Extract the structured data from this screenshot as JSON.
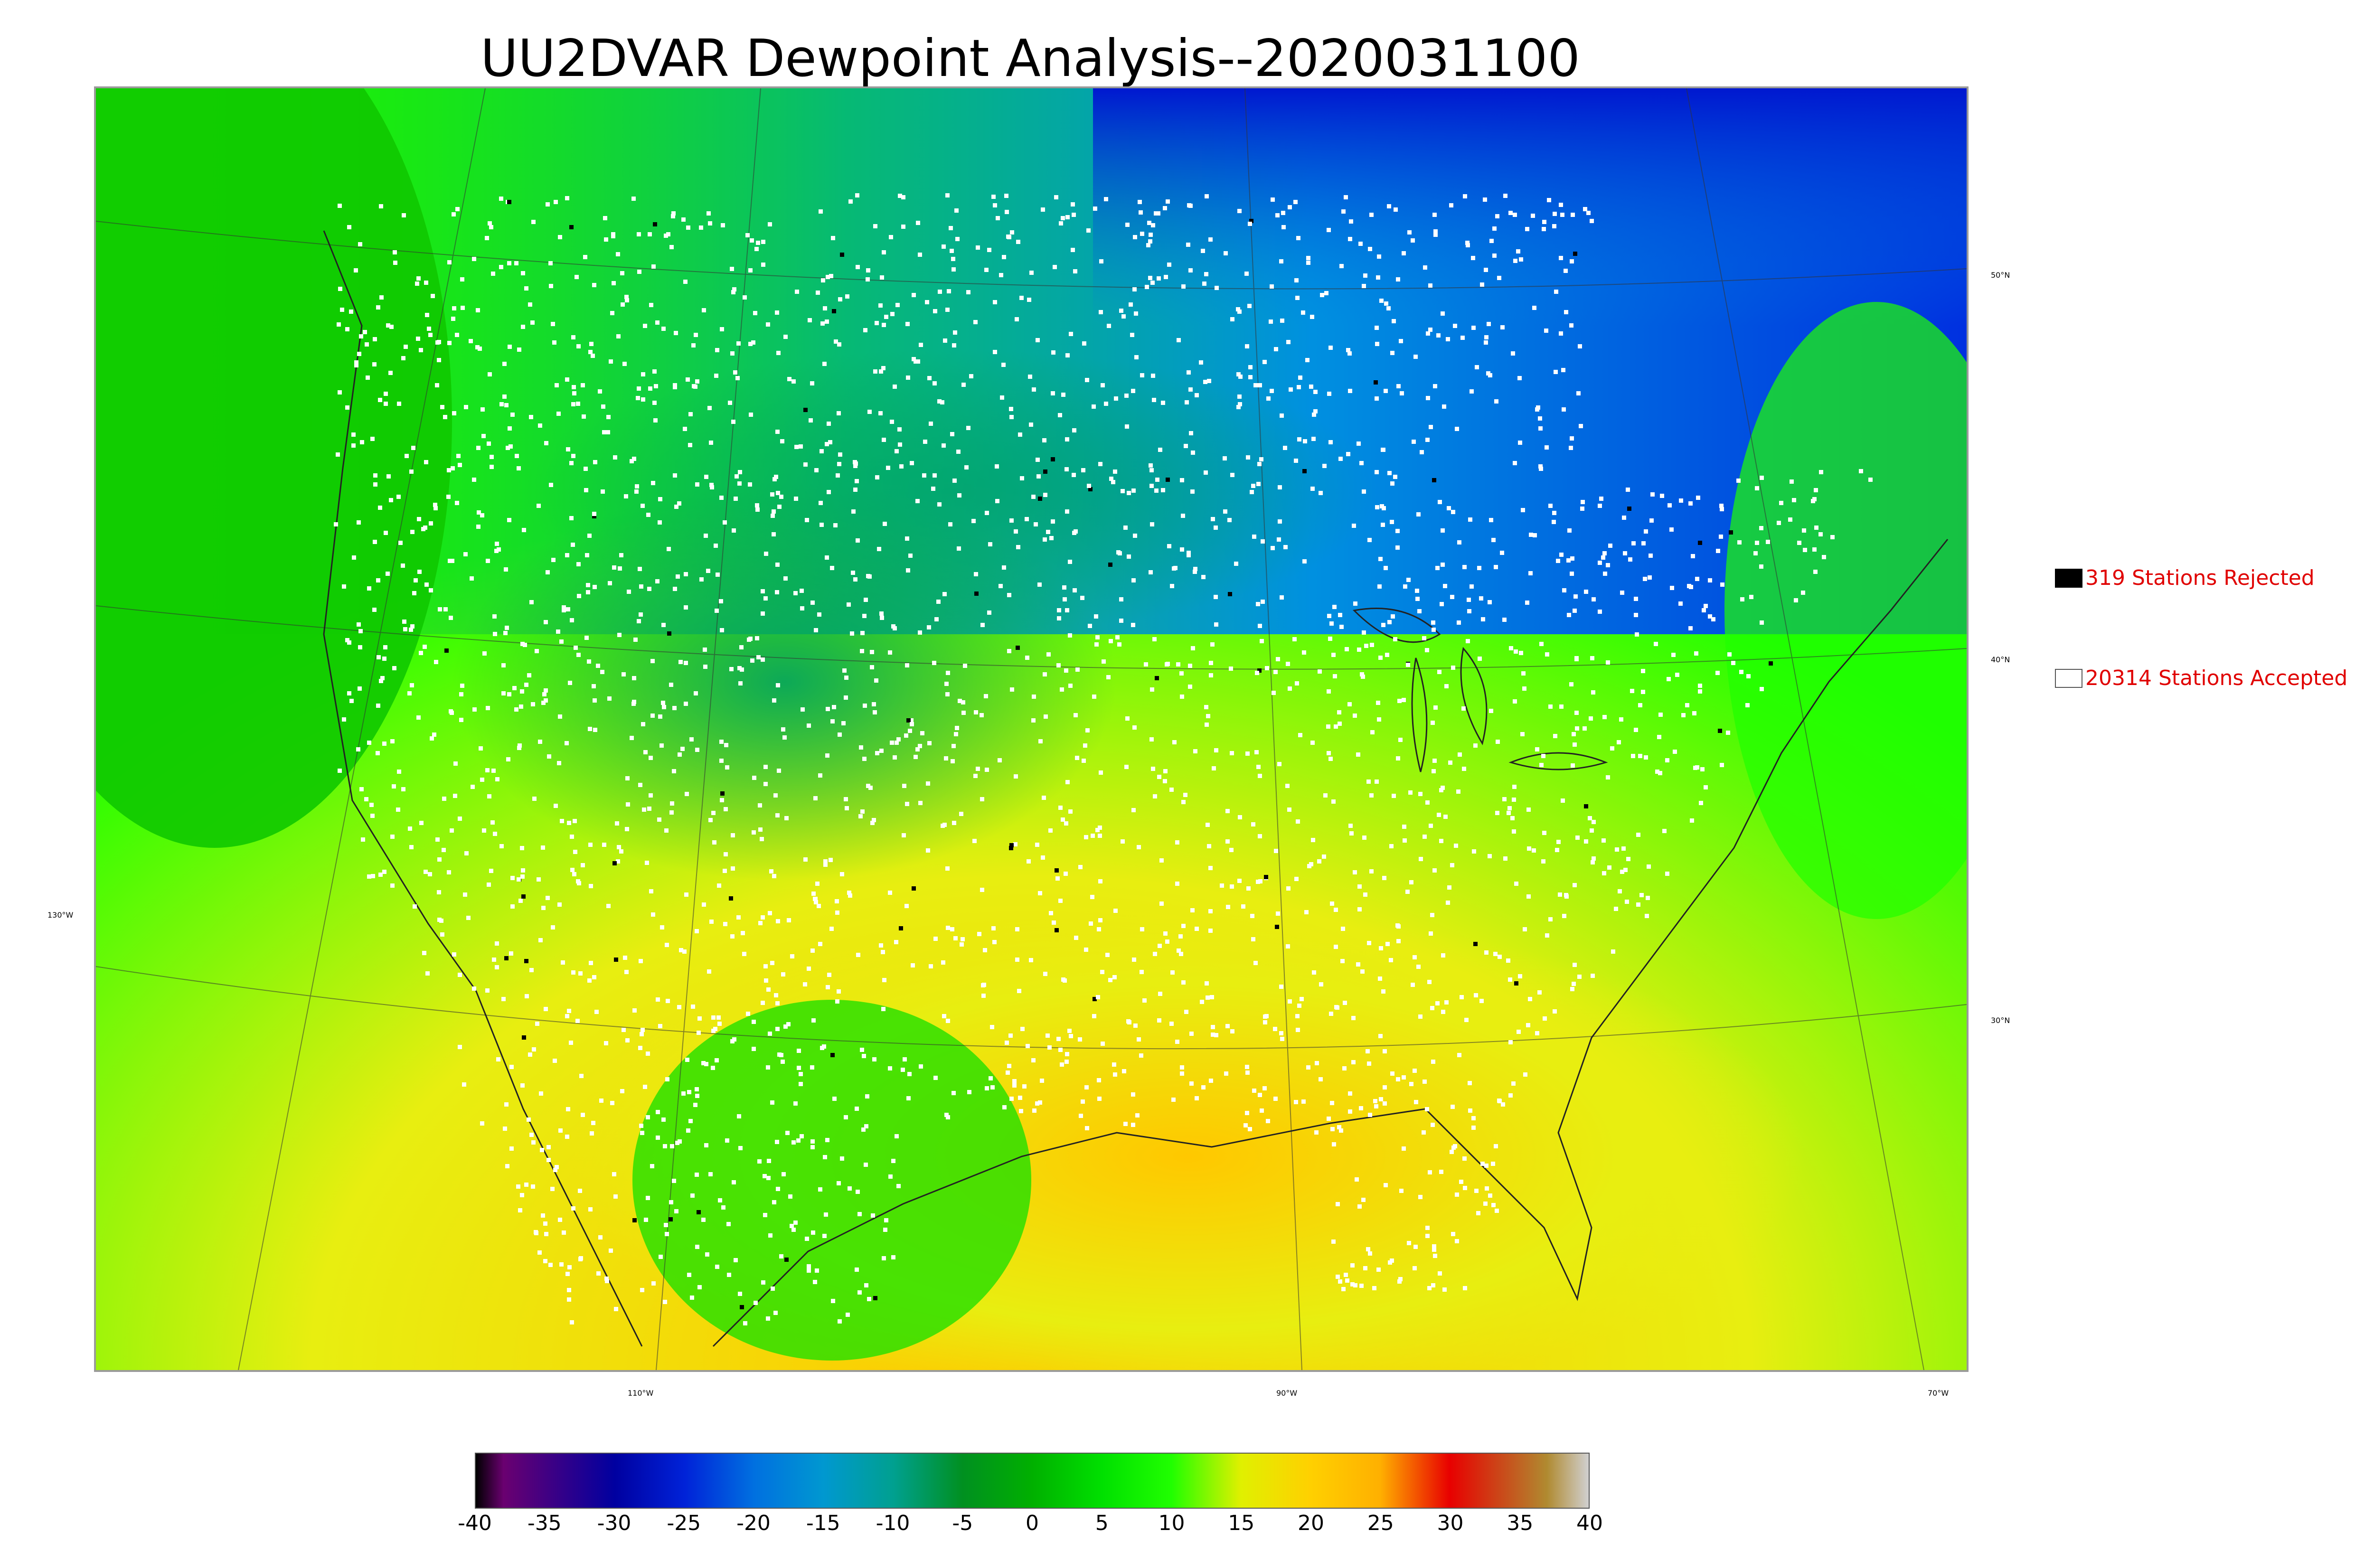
{
  "title": "UU2DVAR Dewpoint Analysis--2020031100",
  "map": {
    "latitude_labels": [
      "50°N",
      "40°N",
      "30°N"
    ],
    "longitude_labels": [
      "130°W",
      "110°W",
      "90°W",
      "70°W"
    ]
  },
  "legend": {
    "rejected": {
      "text": "319 Stations Rejected",
      "swatch_color": "#000000"
    },
    "accepted": {
      "text": "20314 Stations Accepted",
      "swatch_color": "#ffffff"
    },
    "text_color": "#e00000"
  },
  "colorbar": {
    "min": -40,
    "max": 40,
    "ticks": [
      "-40",
      "-35",
      "-30",
      "-25",
      "-20",
      "-15",
      "-10",
      "-5",
      "0",
      "5",
      "10",
      "15",
      "20",
      "25",
      "30",
      "35",
      "40"
    ],
    "stops": [
      {
        "value": -40,
        "color": "#000000"
      },
      {
        "value": -38,
        "color": "#6a0070"
      },
      {
        "value": -30,
        "color": "#0000a0"
      },
      {
        "value": -25,
        "color": "#0022d8"
      },
      {
        "value": -20,
        "color": "#0070e0"
      },
      {
        "value": -15,
        "color": "#0098d0"
      },
      {
        "value": -10,
        "color": "#00a090"
      },
      {
        "value": -5,
        "color": "#009020"
      },
      {
        "value": 0,
        "color": "#00b000"
      },
      {
        "value": 5,
        "color": "#00e000"
      },
      {
        "value": 10,
        "color": "#20ff00"
      },
      {
        "value": 15,
        "color": "#e0f000"
      },
      {
        "value": 20,
        "color": "#ffd000"
      },
      {
        "value": 25,
        "color": "#ffb000"
      },
      {
        "value": 30,
        "color": "#e80000"
      },
      {
        "value": 37,
        "color": "#b08a30"
      },
      {
        "value": 40,
        "color": "#d0d0d0"
      }
    ]
  }
}
